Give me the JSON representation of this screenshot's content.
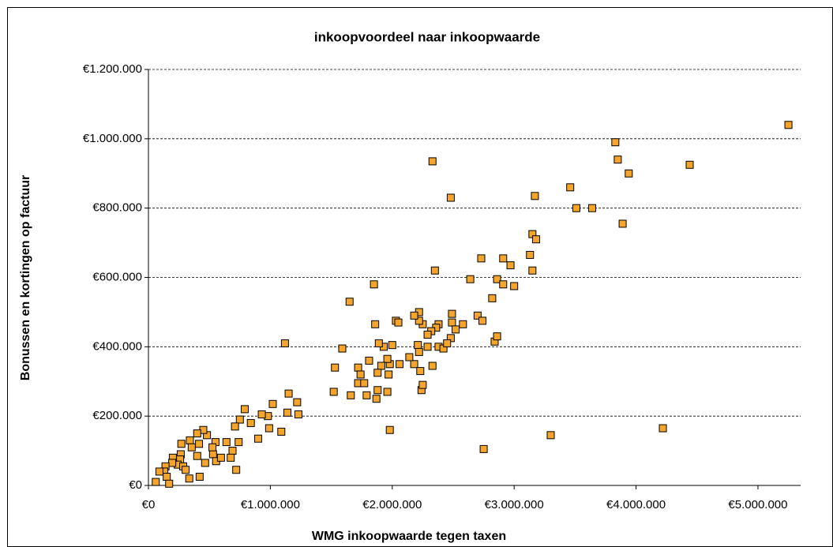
{
  "chart_data": {
    "type": "scatter",
    "title": "inkoopvoordeel naar inkoopwaarde",
    "x_label": "WMG inkoopwaarde tegen taxen",
    "y_label": "Bonussen en kortingen op factuur",
    "color": "#f5a52c",
    "grid": true,
    "xlim": [
      0,
      5350000
    ],
    "ylim": [
      0,
      1200000
    ],
    "xticks": [
      {
        "value": 0,
        "label": "€0"
      },
      {
        "value": 1000000,
        "label": "€1.000.000"
      },
      {
        "value": 2000000,
        "label": "€2.000.000"
      },
      {
        "value": 3000000,
        "label": "€3.000.000"
      },
      {
        "value": 4000000,
        "label": "€4.000.000"
      },
      {
        "value": 5000000,
        "label": "€5.000.000"
      }
    ],
    "yticks": [
      {
        "value": 0,
        "label": "€0"
      },
      {
        "value": 200000,
        "label": "€200.000"
      },
      {
        "value": 400000,
        "label": "€400.000"
      },
      {
        "value": 600000,
        "label": "€600.000"
      },
      {
        "value": 800000,
        "label": "€800.000"
      },
      {
        "value": 1000000,
        "label": "€1.000.000"
      },
      {
        "value": 1200000,
        "label": "€1.200.000"
      }
    ],
    "x": [
      5250000,
      3830000,
      3850000,
      3940000,
      4440000,
      2330000,
      2480000,
      3460000,
      3640000,
      3170000,
      3510000,
      3890000,
      3150000,
      3180000,
      3130000,
      2730000,
      2910000,
      2970000,
      3150000,
      2350000,
      2640000,
      2860000,
      2910000,
      3000000,
      1650000,
      1850000,
      2820000,
      2700000,
      2740000,
      2840000,
      2860000,
      2490000,
      2220000,
      2250000,
      2220000,
      2180000,
      2490000,
      2380000,
      2360000,
      2320000,
      2480000,
      2290000,
      2520000,
      2030000,
      2050000,
      1860000,
      1930000,
      1890000,
      2000000,
      2210000,
      2290000,
      2180000,
      2140000,
      2220000,
      2380000,
      2330000,
      2420000,
      2230000,
      2060000,
      1980000,
      1960000,
      1910000,
      1880000,
      1720000,
      1810000,
      1740000,
      1720000,
      1770000,
      1880000,
      1970000,
      2240000,
      2250000,
      1960000,
      1870000,
      1790000,
      1590000,
      1530000,
      1520000,
      1660000,
      1980000,
      1120000,
      1230000,
      1220000,
      1150000,
      1140000,
      1090000,
      990000,
      980000,
      1020000,
      930000,
      790000,
      840000,
      750000,
      710000,
      740000,
      690000,
      640000,
      550000,
      530000,
      480000,
      525000,
      450000,
      400000,
      415000,
      340000,
      355000,
      270000,
      265000,
      260000,
      240000,
      285000,
      200000,
      195000,
      140000,
      130000,
      90000,
      150000,
      170000,
      60000,
      720000,
      900000,
      400000,
      305000,
      335000,
      420000,
      465000,
      555000,
      595000,
      675000,
      2750000,
      3300000,
      4220000,
      2580000,
      2450000
    ],
    "values": [
      1040000,
      990000,
      940000,
      900000,
      925000,
      935000,
      830000,
      860000,
      800000,
      835000,
      800000,
      755000,
      725000,
      710000,
      665000,
      655000,
      655000,
      635000,
      620000,
      620000,
      595000,
      595000,
      580000,
      575000,
      530000,
      580000,
      540000,
      490000,
      475000,
      415000,
      430000,
      495000,
      500000,
      465000,
      475000,
      490000,
      470000,
      465000,
      455000,
      445000,
      425000,
      435000,
      450000,
      475000,
      470000,
      465000,
      400000,
      410000,
      405000,
      405000,
      400000,
      350000,
      370000,
      385000,
      400000,
      345000,
      395000,
      330000,
      350000,
      350000,
      365000,
      345000,
      325000,
      340000,
      360000,
      320000,
      295000,
      295000,
      275000,
      320000,
      275000,
      290000,
      270000,
      250000,
      260000,
      395000,
      340000,
      270000,
      260000,
      160000,
      410000,
      205000,
      240000,
      265000,
      210000,
      155000,
      165000,
      200000,
      235000,
      205000,
      220000,
      180000,
      190000,
      170000,
      125000,
      100000,
      125000,
      125000,
      90000,
      145000,
      110000,
      160000,
      150000,
      120000,
      130000,
      110000,
      120000,
      90000,
      75000,
      60000,
      55000,
      80000,
      65000,
      55000,
      40000,
      40000,
      25000,
      5000,
      10000,
      45000,
      135000,
      85000,
      45000,
      20000,
      25000,
      65000,
      70000,
      80000,
      80000,
      105000,
      145000,
      165000,
      465000,
      410000
    ]
  }
}
